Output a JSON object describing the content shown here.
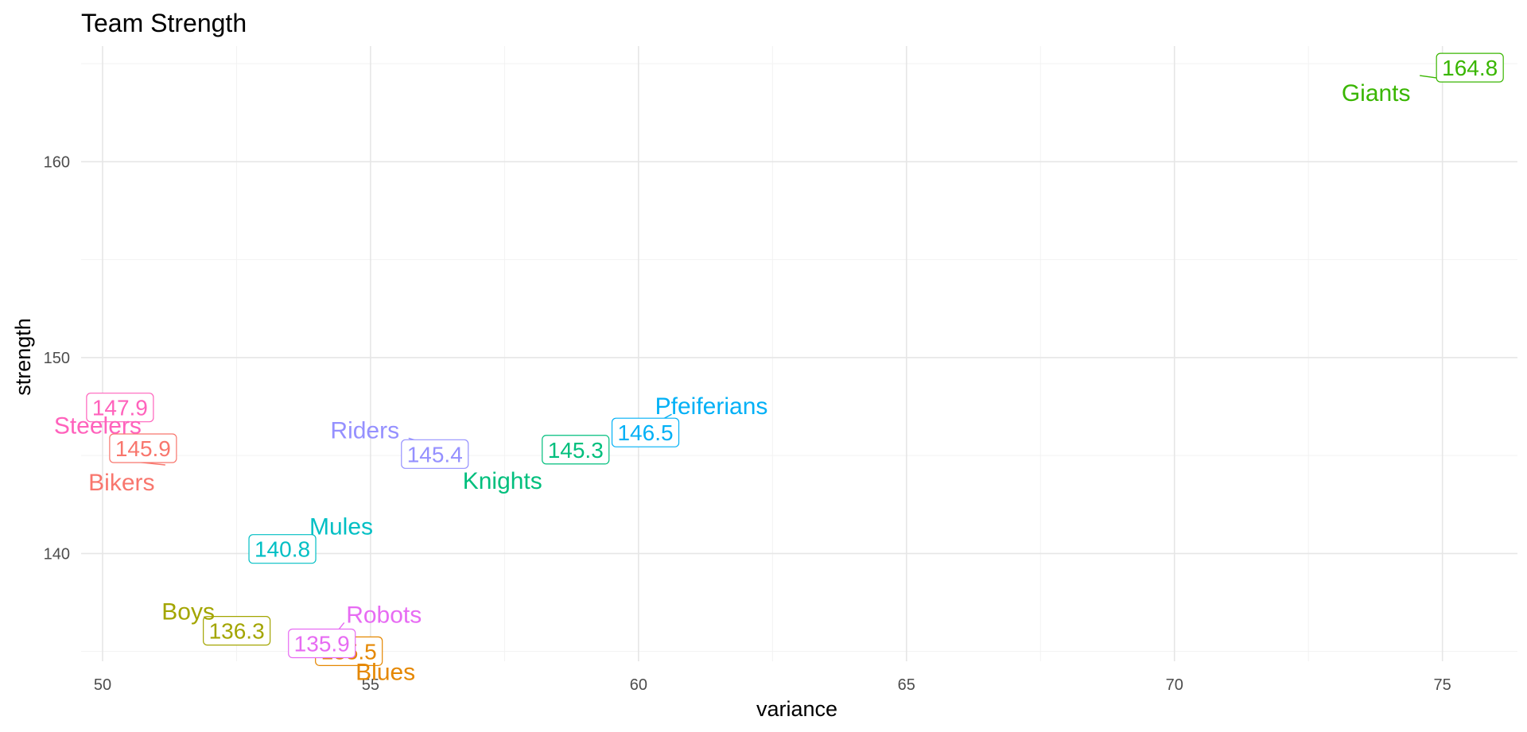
{
  "chart_data": {
    "type": "scatter",
    "title": "Team Strength",
    "xlabel": "variance",
    "ylabel": "strength",
    "xlim": [
      49.6,
      76.4
    ],
    "ylim": [
      134.5,
      165.9
    ],
    "x_ticks": [
      50,
      55,
      60,
      65,
      70,
      75
    ],
    "y_ticks": [
      140,
      150,
      160
    ],
    "grid": true,
    "legend": "none",
    "points": [
      {
        "label": "Giants",
        "value_label": "164.8",
        "x": 74.8,
        "y": 164.8,
        "color": "#39B600"
      },
      {
        "label": "Pfeiferians",
        "value_label": "146.5",
        "x": 60.5,
        "y": 146.5,
        "color": "#00B0F6"
      },
      {
        "label": "Knights",
        "value_label": "145.3",
        "x": 58.5,
        "y": 145.3,
        "color": "#00BF7D"
      },
      {
        "label": "Riders",
        "value_label": "145.4",
        "x": 56.2,
        "y": 145.4,
        "color": "#9590FF"
      },
      {
        "label": "Steelers",
        "value_label": "147.9",
        "x": 50.8,
        "y": 147.9,
        "color": "#FF62BC"
      },
      {
        "label": "Bikers",
        "value_label": "145.9",
        "x": 50.8,
        "y": 145.9,
        "color": "#F8766D"
      },
      {
        "label": "Mules",
        "value_label": "140.8",
        "x": 53.8,
        "y": 140.8,
        "color": "#00BFC4"
      },
      {
        "label": "Boys",
        "value_label": "136.3",
        "x": 52.8,
        "y": 136.3,
        "color": "#A3A500"
      },
      {
        "label": "Robots",
        "value_label": "135.9",
        "x": 54.3,
        "y": 135.9,
        "color": "#E76BF3"
      },
      {
        "label": "Blues",
        "value_label": "135.5",
        "x": 54.7,
        "y": 135.5,
        "color": "#E58700"
      }
    ]
  }
}
